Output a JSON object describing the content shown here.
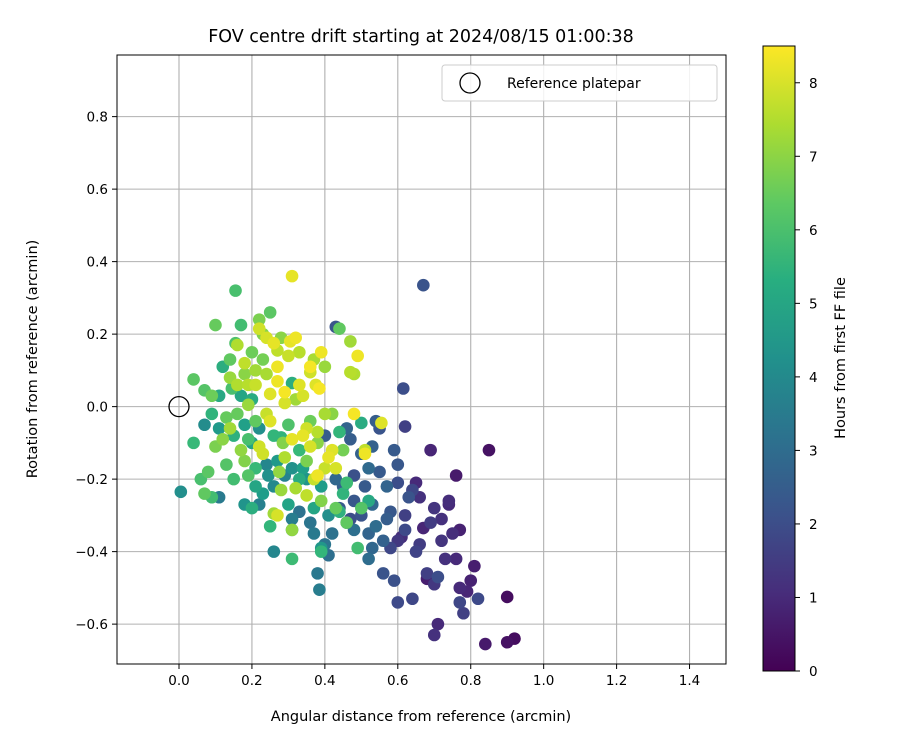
{
  "chart_data": {
    "type": "scatter",
    "title": "FOV centre drift starting at 2024/08/15 01:00:38",
    "xlabel": "Angular distance from reference (arcmin)",
    "ylabel": "Rotation from reference (arcmin)",
    "xlim": [
      -0.17,
      1.5
    ],
    "ylim": [
      -0.71,
      0.97
    ],
    "x_ticks": [
      0.0,
      0.2,
      0.4,
      0.6,
      0.8,
      1.0,
      1.2,
      1.4
    ],
    "x_tick_labels": [
      "0.0",
      "0.2",
      "0.4",
      "0.6",
      "0.8",
      "1.0",
      "1.2",
      "1.4"
    ],
    "y_ticks": [
      -0.6,
      -0.4,
      -0.2,
      0.0,
      0.2,
      0.4,
      0.6,
      0.8
    ],
    "y_tick_labels": [
      "−0.6",
      "−0.4",
      "−0.2",
      "0.0",
      "0.2",
      "0.4",
      "0.6",
      "0.8"
    ],
    "grid": true,
    "legend_position": "top-right",
    "legend_label": "Reference platepar",
    "reference_point": {
      "x": 0.0,
      "y": 0.0
    },
    "colorbar": {
      "label": "Hours from first FF file",
      "range": [
        0,
        8.5
      ],
      "ticks": [
        0,
        1,
        2,
        3,
        4,
        5,
        6,
        7,
        8
      ],
      "tick_labels": [
        "0",
        "1",
        "2",
        "3",
        "4",
        "5",
        "6",
        "7",
        "8"
      ],
      "colormap": "viridis"
    },
    "points": [
      {
        "x": 0.92,
        "y": -0.64,
        "h": 0.3
      },
      {
        "x": 0.9,
        "y": -0.65,
        "h": 0.4
      },
      {
        "x": 0.84,
        "y": -0.655,
        "h": 0.6
      },
      {
        "x": 0.9,
        "y": -0.525,
        "h": 0.3
      },
      {
        "x": 0.85,
        "y": -0.12,
        "h": 0.4
      },
      {
        "x": 0.81,
        "y": -0.44,
        "h": 0.7
      },
      {
        "x": 0.8,
        "y": -0.48,
        "h": 0.8
      },
      {
        "x": 0.79,
        "y": -0.51,
        "h": 0.9
      },
      {
        "x": 0.77,
        "y": -0.5,
        "h": 1.0
      },
      {
        "x": 0.76,
        "y": -0.19,
        "h": 0.6
      },
      {
        "x": 0.77,
        "y": -0.34,
        "h": 0.8
      },
      {
        "x": 0.75,
        "y": -0.35,
        "h": 1.1
      },
      {
        "x": 0.74,
        "y": -0.27,
        "h": 1.0
      },
      {
        "x": 0.73,
        "y": -0.42,
        "h": 1.2
      },
      {
        "x": 0.72,
        "y": -0.37,
        "h": 1.3
      },
      {
        "x": 0.71,
        "y": -0.6,
        "h": 1.0
      },
      {
        "x": 0.7,
        "y": -0.63,
        "h": 1.2
      },
      {
        "x": 0.69,
        "y": -0.12,
        "h": 0.9
      },
      {
        "x": 0.68,
        "y": -0.475,
        "h": 0.7
      },
      {
        "x": 0.7,
        "y": -0.49,
        "h": 1.4
      },
      {
        "x": 0.68,
        "y": -0.46,
        "h": 1.6
      },
      {
        "x": 0.7,
        "y": -0.28,
        "h": 1.3
      },
      {
        "x": 0.69,
        "y": -0.32,
        "h": 1.5
      },
      {
        "x": 0.66,
        "y": -0.25,
        "h": 1.2
      },
      {
        "x": 0.65,
        "y": -0.21,
        "h": 1.0
      },
      {
        "x": 0.67,
        "y": -0.335,
        "h": 0.9
      },
      {
        "x": 0.65,
        "y": -0.4,
        "h": 1.7
      },
      {
        "x": 0.64,
        "y": -0.53,
        "h": 1.8
      },
      {
        "x": 0.62,
        "y": -0.34,
        "h": 1.9
      },
      {
        "x": 0.61,
        "y": -0.36,
        "h": 1.1
      },
      {
        "x": 0.6,
        "y": -0.37,
        "h": 1.4
      },
      {
        "x": 0.6,
        "y": -0.54,
        "h": 1.9
      },
      {
        "x": 0.59,
        "y": -0.48,
        "h": 2.1
      },
      {
        "x": 0.67,
        "y": 0.335,
        "h": 2.2
      },
      {
        "x": 0.615,
        "y": 0.05,
        "h": 2.0
      },
      {
        "x": 0.62,
        "y": -0.055,
        "h": 1.6
      },
      {
        "x": 0.63,
        "y": -0.25,
        "h": 2.2
      },
      {
        "x": 0.64,
        "y": -0.23,
        "h": 1.8
      },
      {
        "x": 0.6,
        "y": -0.16,
        "h": 2.3
      },
      {
        "x": 0.59,
        "y": -0.12,
        "h": 2.4
      },
      {
        "x": 0.6,
        "y": -0.21,
        "h": 2.0
      },
      {
        "x": 0.58,
        "y": -0.29,
        "h": 2.3
      },
      {
        "x": 0.57,
        "y": -0.31,
        "h": 2.5
      },
      {
        "x": 0.56,
        "y": -0.37,
        "h": 2.6
      },
      {
        "x": 0.55,
        "y": -0.18,
        "h": 2.4
      },
      {
        "x": 0.55,
        "y": -0.06,
        "h": 2.2
      },
      {
        "x": 0.54,
        "y": -0.04,
        "h": 2.5
      },
      {
        "x": 0.53,
        "y": -0.11,
        "h": 2.6
      },
      {
        "x": 0.53,
        "y": -0.27,
        "h": 2.8
      },
      {
        "x": 0.52,
        "y": -0.17,
        "h": 2.9
      },
      {
        "x": 0.52,
        "y": -0.42,
        "h": 3.0
      },
      {
        "x": 0.52,
        "y": -0.35,
        "h": 2.7
      },
      {
        "x": 0.51,
        "y": -0.22,
        "h": 2.4
      },
      {
        "x": 0.5,
        "y": -0.3,
        "h": 2.2
      },
      {
        "x": 0.5,
        "y": -0.13,
        "h": 2.6
      },
      {
        "x": 0.48,
        "y": -0.19,
        "h": 2.1
      },
      {
        "x": 0.48,
        "y": -0.26,
        "h": 2.3
      },
      {
        "x": 0.47,
        "y": -0.31,
        "h": 2.0
      },
      {
        "x": 0.47,
        "y": -0.09,
        "h": 2.5
      },
      {
        "x": 0.46,
        "y": -0.06,
        "h": 2.7
      },
      {
        "x": 0.46,
        "y": -0.32,
        "h": 2.9
      },
      {
        "x": 0.45,
        "y": -0.22,
        "h": 2.6
      },
      {
        "x": 0.44,
        "y": -0.28,
        "h": 2.4
      },
      {
        "x": 0.43,
        "y": -0.2,
        "h": 2.8
      },
      {
        "x": 0.43,
        "y": 0.22,
        "h": 2.2
      },
      {
        "x": 0.4,
        "y": -0.08,
        "h": 2.5
      },
      {
        "x": 0.41,
        "y": -0.41,
        "h": 3.1
      },
      {
        "x": 0.42,
        "y": -0.35,
        "h": 3.2
      },
      {
        "x": 0.4,
        "y": -0.38,
        "h": 3.3
      },
      {
        "x": 0.38,
        "y": -0.46,
        "h": 3.4
      },
      {
        "x": 0.385,
        "y": -0.505,
        "h": 3.6
      },
      {
        "x": 0.39,
        "y": -0.4,
        "h": 5.6
      },
      {
        "x": 0.39,
        "y": -0.39,
        "h": 4.5
      },
      {
        "x": 0.37,
        "y": -0.35,
        "h": 3.5
      },
      {
        "x": 0.36,
        "y": -0.32,
        "h": 3.3
      },
      {
        "x": 0.33,
        "y": -0.29,
        "h": 3.2
      },
      {
        "x": 0.31,
        "y": -0.31,
        "h": 3.6
      },
      {
        "x": 0.31,
        "y": -0.34,
        "h": 3.8
      },
      {
        "x": 0.31,
        "y": -0.42,
        "h": 5.8
      },
      {
        "x": 0.26,
        "y": -0.4,
        "h": 3.9
      },
      {
        "x": 0.25,
        "y": -0.33,
        "h": 5.6
      },
      {
        "x": 0.22,
        "y": -0.27,
        "h": 3.7
      },
      {
        "x": 0.2,
        "y": -0.28,
        "h": 5.3
      },
      {
        "x": 0.18,
        "y": -0.27,
        "h": 4.4
      },
      {
        "x": 0.11,
        "y": -0.25,
        "h": 3.5
      },
      {
        "x": 0.09,
        "y": -0.25,
        "h": 5.9
      },
      {
        "x": 0.07,
        "y": -0.24,
        "h": 6.4
      },
      {
        "x": 0.08,
        "y": -0.18,
        "h": 6.3
      },
      {
        "x": 0.06,
        "y": -0.2,
        "h": 6.0
      },
      {
        "x": 0.005,
        "y": -0.235,
        "h": 4.2
      },
      {
        "x": 0.04,
        "y": -0.1,
        "h": 5.7
      },
      {
        "x": 0.04,
        "y": 0.075,
        "h": 6.3
      },
      {
        "x": 0.07,
        "y": 0.045,
        "h": 6.2
      },
      {
        "x": 0.09,
        "y": 0.03,
        "h": 6.6
      },
      {
        "x": 0.07,
        "y": -0.05,
        "h": 4.1
      },
      {
        "x": 0.09,
        "y": -0.02,
        "h": 5.5
      },
      {
        "x": 0.1,
        "y": -0.11,
        "h": 6.8
      },
      {
        "x": 0.11,
        "y": 0.03,
        "h": 5.1
      },
      {
        "x": 0.11,
        "y": -0.06,
        "h": 4.6
      },
      {
        "x": 0.12,
        "y": 0.11,
        "h": 5.3
      },
      {
        "x": 0.13,
        "y": -0.03,
        "h": 6.5
      },
      {
        "x": 0.14,
        "y": 0.13,
        "h": 6.4
      },
      {
        "x": 0.14,
        "y": 0.08,
        "h": 7.2
      },
      {
        "x": 0.145,
        "y": 0.05,
        "h": 6.0
      },
      {
        "x": 0.15,
        "y": -0.08,
        "h": 5.4
      },
      {
        "x": 0.155,
        "y": 0.32,
        "h": 6.0
      },
      {
        "x": 0.155,
        "y": 0.175,
        "h": 6.1
      },
      {
        "x": 0.16,
        "y": 0.17,
        "h": 7.5
      },
      {
        "x": 0.17,
        "y": 0.225,
        "h": 5.9
      },
      {
        "x": 0.1,
        "y": 0.225,
        "h": 6.5
      },
      {
        "x": 0.17,
        "y": 0.03,
        "h": 5.0
      },
      {
        "x": 0.18,
        "y": -0.15,
        "h": 6.9
      },
      {
        "x": 0.18,
        "y": -0.05,
        "h": 4.8
      },
      {
        "x": 0.18,
        "y": 0.09,
        "h": 7.0
      },
      {
        "x": 0.19,
        "y": -0.19,
        "h": 6.2
      },
      {
        "x": 0.19,
        "y": 0.06,
        "h": 7.6
      },
      {
        "x": 0.2,
        "y": 0.02,
        "h": 5.2
      },
      {
        "x": 0.2,
        "y": -0.1,
        "h": 4.9
      },
      {
        "x": 0.2,
        "y": 0.15,
        "h": 6.6
      },
      {
        "x": 0.21,
        "y": -0.22,
        "h": 5.0
      },
      {
        "x": 0.21,
        "y": -0.04,
        "h": 6.4
      },
      {
        "x": 0.21,
        "y": 0.1,
        "h": 7.3
      },
      {
        "x": 0.22,
        "y": 0.24,
        "h": 6.8
      },
      {
        "x": 0.22,
        "y": 0.215,
        "h": 7.9
      },
      {
        "x": 0.23,
        "y": 0.2,
        "h": 6.9
      },
      {
        "x": 0.23,
        "y": 0.13,
        "h": 6.7
      },
      {
        "x": 0.23,
        "y": -0.24,
        "h": 4.7
      },
      {
        "x": 0.23,
        "y": -0.13,
        "h": 7.9
      },
      {
        "x": 0.24,
        "y": -0.02,
        "h": 7.8
      },
      {
        "x": 0.24,
        "y": 0.09,
        "h": 7.4
      },
      {
        "x": 0.245,
        "y": -0.19,
        "h": 4.3
      },
      {
        "x": 0.25,
        "y": 0.26,
        "h": 6.3
      },
      {
        "x": 0.25,
        "y": 0.035,
        "h": 8.1
      },
      {
        "x": 0.26,
        "y": -0.08,
        "h": 5.6
      },
      {
        "x": 0.26,
        "y": 0.175,
        "h": 8.2
      },
      {
        "x": 0.26,
        "y": -0.295,
        "h": 7.3
      },
      {
        "x": 0.27,
        "y": 0.155,
        "h": 7.7
      },
      {
        "x": 0.27,
        "y": 0.07,
        "h": 8.3
      },
      {
        "x": 0.27,
        "y": -0.3,
        "h": 8.0
      },
      {
        "x": 0.275,
        "y": -0.18,
        "h": 7.1
      },
      {
        "x": 0.28,
        "y": -0.23,
        "h": 7.2
      },
      {
        "x": 0.28,
        "y": 0.19,
        "h": 7.0
      },
      {
        "x": 0.285,
        "y": -0.1,
        "h": 6.9
      },
      {
        "x": 0.29,
        "y": -0.14,
        "h": 7.5
      },
      {
        "x": 0.29,
        "y": 0.01,
        "h": 8.0
      },
      {
        "x": 0.3,
        "y": 0.14,
        "h": 7.8
      },
      {
        "x": 0.3,
        "y": -0.05,
        "h": 6.1
      },
      {
        "x": 0.305,
        "y": 0.18,
        "h": 8.2
      },
      {
        "x": 0.31,
        "y": -0.34,
        "h": 7.1
      },
      {
        "x": 0.31,
        "y": 0.36,
        "h": 8.2
      },
      {
        "x": 0.31,
        "y": 0.065,
        "h": 5.3
      },
      {
        "x": 0.32,
        "y": 0.19,
        "h": 8.3
      },
      {
        "x": 0.32,
        "y": -0.225,
        "h": 7.4
      },
      {
        "x": 0.32,
        "y": 0.02,
        "h": 7.3
      },
      {
        "x": 0.33,
        "y": -0.12,
        "h": 5.7
      },
      {
        "x": 0.33,
        "y": 0.15,
        "h": 7.6
      },
      {
        "x": 0.34,
        "y": 0.03,
        "h": 8.0
      },
      {
        "x": 0.34,
        "y": -0.08,
        "h": 8.2
      },
      {
        "x": 0.35,
        "y": -0.15,
        "h": 6.8
      },
      {
        "x": 0.35,
        "y": -0.245,
        "h": 7.7
      },
      {
        "x": 0.36,
        "y": 0.095,
        "h": 7.9
      },
      {
        "x": 0.36,
        "y": 0.11,
        "h": 8.4
      },
      {
        "x": 0.36,
        "y": -0.04,
        "h": 6.6
      },
      {
        "x": 0.37,
        "y": -0.2,
        "h": 7.8
      },
      {
        "x": 0.37,
        "y": 0.13,
        "h": 7.4
      },
      {
        "x": 0.375,
        "y": 0.06,
        "h": 8.1
      },
      {
        "x": 0.38,
        "y": -0.1,
        "h": 7.0
      },
      {
        "x": 0.38,
        "y": -0.19,
        "h": 8.3
      },
      {
        "x": 0.385,
        "y": 0.05,
        "h": 8.4
      },
      {
        "x": 0.39,
        "y": 0.15,
        "h": 8.3
      },
      {
        "x": 0.39,
        "y": -0.26,
        "h": 6.9
      },
      {
        "x": 0.4,
        "y": -0.02,
        "h": 7.4
      },
      {
        "x": 0.4,
        "y": 0.11,
        "h": 7.2
      },
      {
        "x": 0.41,
        "y": -0.14,
        "h": 8.2
      },
      {
        "x": 0.42,
        "y": -0.02,
        "h": 7.0
      },
      {
        "x": 0.43,
        "y": -0.17,
        "h": 8.0
      },
      {
        "x": 0.44,
        "y": 0.215,
        "h": 6.4
      },
      {
        "x": 0.45,
        "y": -0.12,
        "h": 6.7
      },
      {
        "x": 0.46,
        "y": -0.21,
        "h": 5.8
      },
      {
        "x": 0.47,
        "y": 0.18,
        "h": 7.3
      },
      {
        "x": 0.47,
        "y": 0.095,
        "h": 7.6
      },
      {
        "x": 0.48,
        "y": -0.02,
        "h": 8.4
      },
      {
        "x": 0.48,
        "y": 0.09,
        "h": 7.5
      },
      {
        "x": 0.49,
        "y": -0.39,
        "h": 5.9
      },
      {
        "x": 0.49,
        "y": 0.14,
        "h": 8.3
      },
      {
        "x": 0.5,
        "y": -0.28,
        "h": 6.2
      },
      {
        "x": 0.5,
        "y": -0.045,
        "h": 5.2
      },
      {
        "x": 0.51,
        "y": -0.13,
        "h": 8.3
      },
      {
        "x": 0.51,
        "y": -0.12,
        "h": 7.7
      },
      {
        "x": 0.555,
        "y": -0.045,
        "h": 8.1
      },
      {
        "x": 0.46,
        "y": -0.32,
        "h": 6.4
      },
      {
        "x": 0.52,
        "y": -0.26,
        "h": 5.1
      },
      {
        "x": 0.44,
        "y": -0.29,
        "h": 5.4
      },
      {
        "x": 0.34,
        "y": -0.17,
        "h": 4.8
      },
      {
        "x": 0.3,
        "y": -0.27,
        "h": 4.9
      },
      {
        "x": 0.28,
        "y": -0.085,
        "h": 5.5
      },
      {
        "x": 0.27,
        "y": -0.15,
        "h": 4.6
      },
      {
        "x": 0.26,
        "y": -0.22,
        "h": 4.0
      },
      {
        "x": 0.24,
        "y": -0.16,
        "h": 3.9
      },
      {
        "x": 0.22,
        "y": -0.06,
        "h": 4.2
      },
      {
        "x": 0.21,
        "y": -0.17,
        "h": 5.7
      },
      {
        "x": 0.19,
        "y": -0.09,
        "h": 6.0
      },
      {
        "x": 0.17,
        "y": -0.12,
        "h": 7.1
      },
      {
        "x": 0.16,
        "y": -0.02,
        "h": 6.5
      },
      {
        "x": 0.15,
        "y": -0.2,
        "h": 5.9
      },
      {
        "x": 0.14,
        "y": -0.06,
        "h": 7.3
      },
      {
        "x": 0.13,
        "y": -0.16,
        "h": 6.2
      },
      {
        "x": 0.12,
        "y": -0.09,
        "h": 7.0
      },
      {
        "x": 0.16,
        "y": 0.06,
        "h": 7.5
      },
      {
        "x": 0.18,
        "y": 0.12,
        "h": 7.7
      },
      {
        "x": 0.19,
        "y": 0.005,
        "h": 7.2
      },
      {
        "x": 0.21,
        "y": 0.06,
        "h": 7.8
      },
      {
        "x": 0.22,
        "y": -0.11,
        "h": 7.9
      },
      {
        "x": 0.24,
        "y": 0.19,
        "h": 8.0
      },
      {
        "x": 0.25,
        "y": -0.04,
        "h": 8.1
      },
      {
        "x": 0.27,
        "y": 0.11,
        "h": 8.3
      },
      {
        "x": 0.29,
        "y": 0.04,
        "h": 8.4
      },
      {
        "x": 0.31,
        "y": -0.09,
        "h": 8.2
      },
      {
        "x": 0.33,
        "y": 0.06,
        "h": 8.1
      },
      {
        "x": 0.35,
        "y": -0.06,
        "h": 7.9
      },
      {
        "x": 0.36,
        "y": -0.11,
        "h": 8.0
      },
      {
        "x": 0.38,
        "y": -0.07,
        "h": 7.6
      },
      {
        "x": 0.4,
        "y": -0.17,
        "h": 7.8
      },
      {
        "x": 0.42,
        "y": -0.12,
        "h": 8.1
      },
      {
        "x": 0.44,
        "y": -0.07,
        "h": 5.6
      },
      {
        "x": 0.45,
        "y": -0.24,
        "h": 5.5
      },
      {
        "x": 0.43,
        "y": -0.28,
        "h": 6.5
      },
      {
        "x": 0.41,
        "y": -0.3,
        "h": 4.2
      },
      {
        "x": 0.39,
        "y": -0.22,
        "h": 4.7
      },
      {
        "x": 0.37,
        "y": -0.28,
        "h": 5.0
      },
      {
        "x": 0.35,
        "y": -0.2,
        "h": 4.4
      },
      {
        "x": 0.33,
        "y": -0.2,
        "h": 5.2
      },
      {
        "x": 0.31,
        "y": -0.17,
        "h": 4.3
      },
      {
        "x": 0.29,
        "y": -0.19,
        "h": 3.8
      },
      {
        "x": 0.57,
        "y": -0.22,
        "h": 2.7
      },
      {
        "x": 0.54,
        "y": -0.33,
        "h": 3.0
      },
      {
        "x": 0.56,
        "y": -0.46,
        "h": 2.2
      },
      {
        "x": 0.58,
        "y": -0.39,
        "h": 1.8
      },
      {
        "x": 0.62,
        "y": -0.3,
        "h": 1.6
      },
      {
        "x": 0.66,
        "y": -0.38,
        "h": 1.5
      },
      {
        "x": 0.72,
        "y": -0.31,
        "h": 1.2
      },
      {
        "x": 0.76,
        "y": -0.42,
        "h": 1.0
      },
      {
        "x": 0.78,
        "y": -0.57,
        "h": 1.6
      },
      {
        "x": 0.77,
        "y": -0.54,
        "h": 1.8
      },
      {
        "x": 0.74,
        "y": -0.26,
        "h": 1.1
      },
      {
        "x": 0.82,
        "y": -0.53,
        "h": 1.9
      },
      {
        "x": 0.71,
        "y": -0.47,
        "h": 2.0
      },
      {
        "x": 0.53,
        "y": -0.39,
        "h": 2.8
      },
      {
        "x": 0.48,
        "y": -0.34,
        "h": 3.1
      }
    ]
  }
}
